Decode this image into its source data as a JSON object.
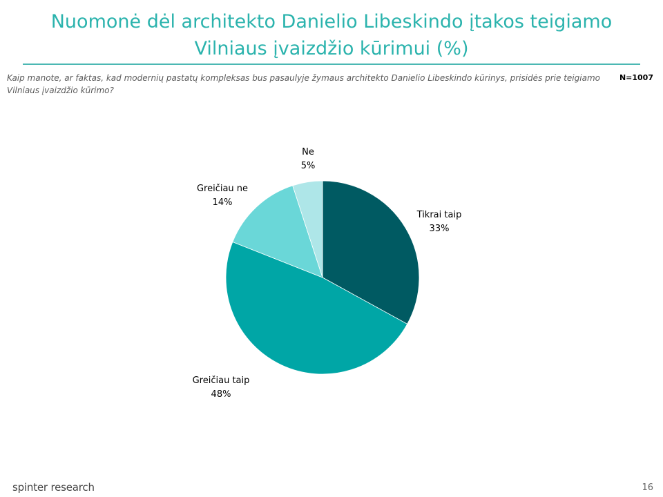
{
  "slide": {
    "title": "Nuomonė dėl architekto Danielio Libeskindo įtakos teigiamo Vilniaus įvaizdžio kūrimui (%)",
    "question": "Kaip manote, ar faktas, kad  modernių pastatų kompleksas bus pasaulyje žymaus architekto Danielio Libeskindo kūrinys, prisidės prie teigiamo Vilniaus įvaizdžio kūrimo?",
    "sample_size": "N=1007",
    "brand": "spinter research",
    "page_number": "16"
  },
  "chart_data": {
    "type": "pie",
    "title": "",
    "slices": [
      {
        "label": "Tikrai taip",
        "value": 33,
        "value_label": "33%",
        "color": "#005a62"
      },
      {
        "label": "Greičiau taip",
        "value": 48,
        "value_label": "48%",
        "color": "#00a6a6"
      },
      {
        "label": "Greičiau ne",
        "value": 14,
        "value_label": "14%",
        "color": "#6ad7d8"
      },
      {
        "label": "Ne",
        "value": 5,
        "value_label": "5%",
        "color": "#aee6e8"
      }
    ],
    "start_angle": "12 o'clock",
    "direction": "clockwise",
    "legend": "none",
    "data_labels": "outside"
  }
}
